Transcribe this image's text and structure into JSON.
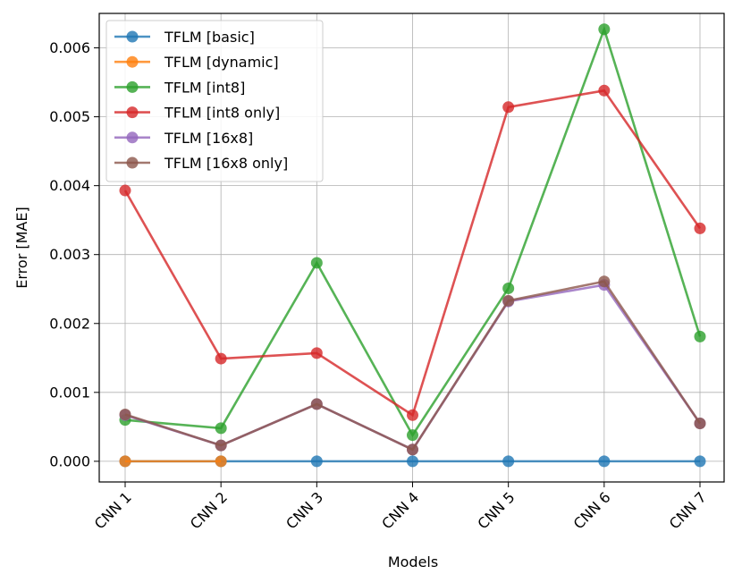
{
  "chart_data": {
    "type": "line",
    "xlabel": "Models",
    "ylabel": "Error [MAE]",
    "categories": [
      "CNN 1",
      "CNN 2",
      "CNN 3",
      "CNN 4",
      "CNN 5",
      "CNN 6",
      "CNN 7"
    ],
    "ylim": [
      -0.0003,
      0.0065
    ],
    "yticks": [
      0.0,
      0.001,
      0.002,
      0.003,
      0.004,
      0.005,
      0.006
    ],
    "ytick_labels": [
      "0.000",
      "0.001",
      "0.002",
      "0.003",
      "0.004",
      "0.005",
      "0.006"
    ],
    "grid": true,
    "legend_position": "top-left",
    "series": [
      {
        "name": "TFLM [basic]",
        "color": "#1f77b4",
        "values": [
          0.0,
          0.0,
          0.0,
          0.0,
          0.0,
          0.0,
          0.0
        ]
      },
      {
        "name": "TFLM [dynamic]",
        "color": "#ff7f0e",
        "values": [
          0.0,
          0.0,
          null,
          null,
          null,
          null,
          null
        ]
      },
      {
        "name": "TFLM [int8]",
        "color": "#2ca02c",
        "values": [
          0.0006,
          0.00048,
          0.00288,
          0.00038,
          0.00251,
          0.00627,
          0.00181
        ]
      },
      {
        "name": "TFLM [int8 only]",
        "color": "#d62728",
        "values": [
          0.00393,
          0.00149,
          0.00157,
          0.00067,
          0.00514,
          0.00538,
          0.00338
        ]
      },
      {
        "name": "TFLM [16x8]",
        "color": "#9467bd",
        "values": [
          0.00067,
          0.00023,
          0.00083,
          0.00017,
          0.00232,
          0.00256,
          0.00055
        ]
      },
      {
        "name": "TFLM [16x8 only]",
        "color": "#8c564b",
        "values": [
          0.00068,
          0.00023,
          0.00083,
          0.00017,
          0.00233,
          0.00261,
          0.00055
        ]
      }
    ]
  }
}
